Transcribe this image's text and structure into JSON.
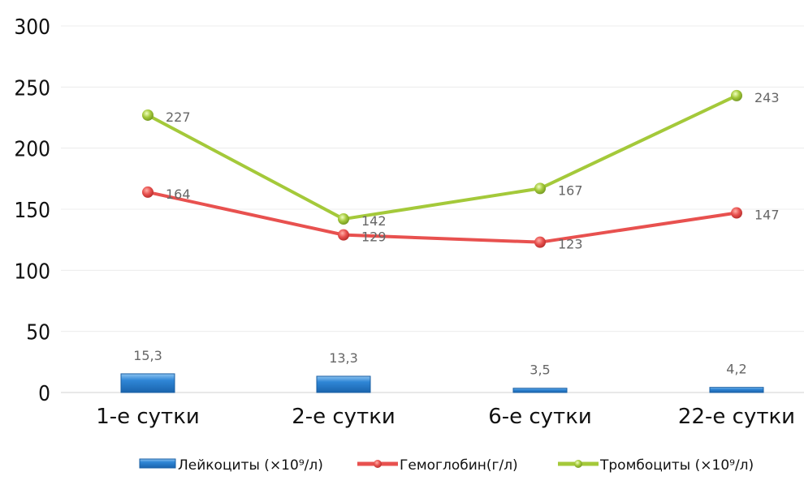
{
  "chart_data": {
    "type": "bar+line",
    "categories": [
      "1-е сутки",
      "2-е сутки",
      "6-е сутки",
      "22-е сутки"
    ],
    "ylim": [
      0,
      300
    ],
    "yticks": [
      "0",
      "50",
      "100",
      "150",
      "200",
      "250",
      "300"
    ],
    "grid": true,
    "legend_position": "bottom",
    "series": [
      {
        "name": "Лейкоциты (×10⁹/л)",
        "kind": "bar",
        "color": "#2f7fc9",
        "values": [
          15.3,
          13.3,
          3.5,
          4.2
        ],
        "labels": [
          "15,3",
          "13,3",
          "3,5",
          "4,2"
        ]
      },
      {
        "name": "Гемоглобин(г/л)",
        "kind": "line",
        "color": "#e8514f",
        "values": [
          164,
          129,
          123,
          147
        ],
        "labels": [
          "164",
          "129",
          "123",
          "147"
        ]
      },
      {
        "name": "Тромбоциты (×10⁹/л)",
        "kind": "line",
        "color": "#a4c93a",
        "values": [
          227,
          142,
          167,
          243
        ],
        "labels": [
          "227",
          "142",
          "167",
          "243"
        ]
      }
    ]
  }
}
